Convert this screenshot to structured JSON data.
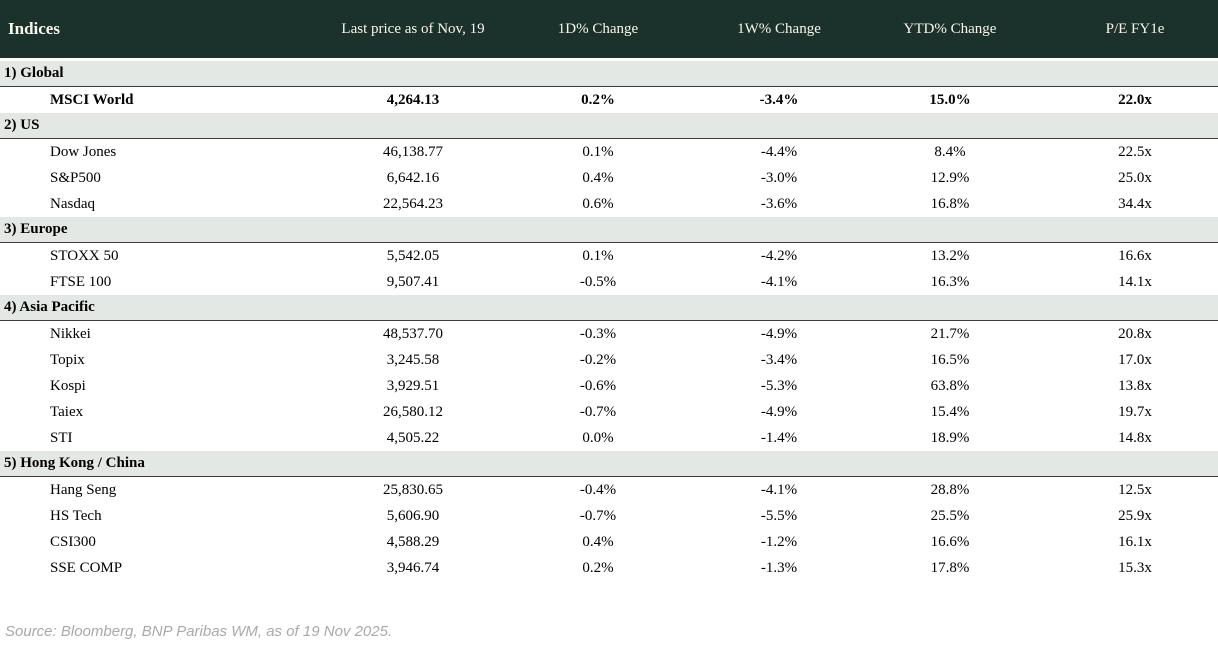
{
  "colors": {
    "header_bg": "#1b322c",
    "header_text": "#f8f6ec",
    "section_bg": "#e4e8e4",
    "section_border": "#3c3c3c",
    "text": "#000000",
    "positive": "#128a3a",
    "negative": "#c01020",
    "source_text": "#a9a9a9"
  },
  "table": {
    "columns": [
      "Indices",
      "Last price as of Nov, 19",
      "1D% Change",
      "1W% Change",
      "YTD% Change",
      "P/E FY1e"
    ],
    "sections": [
      {
        "label": "1) Global",
        "rows": [
          {
            "name": "MSCI World",
            "last_price": "4,264.13",
            "d1": "0.2%",
            "w1": "-3.4%",
            "ytd": "15.0%",
            "pe": "22.0x",
            "bold": true
          }
        ]
      },
      {
        "label": "2) US",
        "rows": [
          {
            "name": "Dow Jones",
            "last_price": "46,138.77",
            "d1": "0.1%",
            "w1": "-4.4%",
            "ytd": "8.4%",
            "pe": "22.5x",
            "bold": false
          },
          {
            "name": "S&P500",
            "last_price": "6,642.16",
            "d1": "0.4%",
            "w1": "-3.0%",
            "ytd": "12.9%",
            "pe": "25.0x",
            "bold": false
          },
          {
            "name": "Nasdaq",
            "last_price": "22,564.23",
            "d1": "0.6%",
            "w1": "-3.6%",
            "ytd": "16.8%",
            "pe": "34.4x",
            "bold": false
          }
        ]
      },
      {
        "label": "3) Europe",
        "rows": [
          {
            "name": "STOXX 50",
            "last_price": "5,542.05",
            "d1": "0.1%",
            "w1": "-4.2%",
            "ytd": "13.2%",
            "pe": "16.6x",
            "bold": false
          },
          {
            "name": "FTSE 100",
            "last_price": "9,507.41",
            "d1": "-0.5%",
            "w1": "-4.1%",
            "ytd": "16.3%",
            "pe": "14.1x",
            "bold": false
          }
        ]
      },
      {
        "label": "4) Asia Pacific",
        "rows": [
          {
            "name": "Nikkei",
            "last_price": "48,537.70",
            "d1": "-0.3%",
            "w1": "-4.9%",
            "ytd": "21.7%",
            "pe": "20.8x",
            "bold": false
          },
          {
            "name": "Topix",
            "last_price": "3,245.58",
            "d1": "-0.2%",
            "w1": "-3.4%",
            "ytd": "16.5%",
            "pe": "17.0x",
            "bold": false
          },
          {
            "name": "Kospi",
            "last_price": "3,929.51",
            "d1": "-0.6%",
            "w1": "-5.3%",
            "ytd": "63.8%",
            "pe": "13.8x",
            "bold": false
          },
          {
            "name": "Taiex",
            "last_price": "26,580.12",
            "d1": "-0.7%",
            "w1": "-4.9%",
            "ytd": "15.4%",
            "pe": "19.7x",
            "bold": false
          },
          {
            "name": "STI",
            "last_price": "4,505.22",
            "d1": "0.0%",
            "w1": "-1.4%",
            "ytd": "18.9%",
            "pe": "14.8x",
            "bold": false
          }
        ]
      },
      {
        "label": "5) Hong Kong / China",
        "rows": [
          {
            "name": "Hang Seng",
            "last_price": "25,830.65",
            "d1": "-0.4%",
            "w1": "-4.1%",
            "ytd": "28.8%",
            "pe": "12.5x",
            "bold": false
          },
          {
            "name": "HS Tech",
            "last_price": "5,606.90",
            "d1": "-0.7%",
            "w1": "-5.5%",
            "ytd": "25.5%",
            "pe": "25.9x",
            "bold": false
          },
          {
            "name": "CSI300",
            "last_price": "4,588.29",
            "d1": "0.4%",
            "w1": "-1.2%",
            "ytd": "16.6%",
            "pe": "16.1x",
            "bold": false
          },
          {
            "name": "SSE COMP",
            "last_price": "3,946.74",
            "d1": "0.2%",
            "w1": "-1.3%",
            "ytd": "17.8%",
            "pe": "15.3x",
            "bold": false
          }
        ]
      }
    ]
  },
  "source": "Source: Bloomberg, BNP Paribas WM, as of 19 Nov 2025."
}
